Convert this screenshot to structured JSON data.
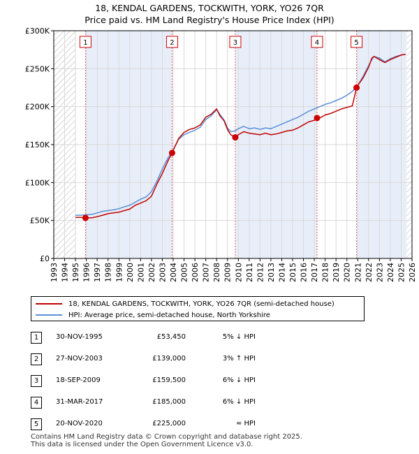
{
  "header": {
    "title_line1": "18, KENDAL GARDENS, TOCKWITH, YORK, YO26 7QR",
    "title_line2": "Price paid vs. HM Land Registry's House Price Index (HPI)"
  },
  "chart_data": {
    "type": "line",
    "title": "Price paid vs. HM Land Registry's House Price Index (HPI)",
    "xlabel": "",
    "ylabel": "",
    "xlim": [
      1993,
      2026
    ],
    "ylim": [
      0,
      300000
    ],
    "y_ticks": [
      0,
      50000,
      100000,
      150000,
      200000,
      250000,
      300000
    ],
    "y_tick_labels": [
      "£0",
      "£50K",
      "£100K",
      "£150K",
      "£200K",
      "£250K",
      "£300K"
    ],
    "x_ticks": [
      1993,
      1994,
      1995,
      1996,
      1997,
      1998,
      1999,
      2000,
      2001,
      2002,
      2003,
      2004,
      2005,
      2006,
      2007,
      2008,
      2009,
      2010,
      2011,
      2012,
      2013,
      2014,
      2015,
      2016,
      2017,
      2018,
      2019,
      2020,
      2021,
      2022,
      2023,
      2024,
      2025,
      2026
    ],
    "hatched_ranges": [
      [
        1993,
        1995.0
      ],
      [
        2025.5,
        2026
      ]
    ],
    "series": [
      {
        "name": "18, KENDAL GARDENS, TOCKWITH, YORK, YO26 7QR (semi-detached house)",
        "color": "#c00000",
        "x": [
          1995.0,
          1995.5,
          1995.92,
          1996.5,
          1997.0,
          1997.5,
          1998.0,
          1998.5,
          1999.0,
          1999.5,
          2000.0,
          2000.5,
          2001.0,
          2001.5,
          2002.0,
          2002.5,
          2003.0,
          2003.5,
          2003.9,
          2004.5,
          2005.0,
          2005.5,
          2006.0,
          2006.5,
          2007.0,
          2007.5,
          2008.0,
          2008.3,
          2008.7,
          2009.0,
          2009.3,
          2009.72,
          2010.0,
          2010.5,
          2011.0,
          2011.5,
          2012.0,
          2012.5,
          2013.0,
          2013.5,
          2014.0,
          2014.5,
          2015.0,
          2015.5,
          2016.0,
          2016.5,
          2017.0,
          2017.25,
          2017.5,
          2018.0,
          2018.5,
          2019.0,
          2019.5,
          2020.0,
          2020.5,
          2020.89,
          2021.0,
          2021.5,
          2022.0,
          2022.3,
          2022.5,
          2023.0,
          2023.5,
          2024.0,
          2024.5,
          2025.0,
          2025.4
        ],
        "y": [
          54000,
          54000,
          53450,
          53500,
          55000,
          57000,
          59000,
          60000,
          61000,
          63000,
          65000,
          70000,
          73000,
          76000,
          82000,
          98000,
          112000,
          128000,
          139000,
          158000,
          166000,
          170000,
          172000,
          176000,
          186000,
          190000,
          197000,
          188000,
          181000,
          170000,
          163000,
          159500,
          163000,
          167000,
          165000,
          164000,
          163000,
          165000,
          163000,
          164000,
          166000,
          168000,
          169000,
          172000,
          176000,
          180000,
          182000,
          185000,
          185000,
          189000,
          191000,
          194000,
          197000,
          199000,
          201000,
          225000,
          228000,
          238000,
          252000,
          264000,
          266000,
          262000,
          258000,
          262000,
          265000,
          268000,
          269000
        ]
      },
      {
        "name": "HPI: Average price, semi-detached house, North Yorkshire",
        "color": "#5b8fd6",
        "x": [
          1995.0,
          1995.5,
          1996.0,
          1996.5,
          1997.0,
          1997.5,
          1998.0,
          1998.5,
          1999.0,
          1999.5,
          2000.0,
          2000.5,
          2001.0,
          2001.5,
          2002.0,
          2002.5,
          2003.0,
          2003.5,
          2004.0,
          2004.5,
          2005.0,
          2005.5,
          2006.0,
          2006.5,
          2007.0,
          2007.5,
          2008.0,
          2008.3,
          2008.7,
          2009.0,
          2009.3,
          2009.7,
          2010.0,
          2010.5,
          2011.0,
          2011.5,
          2012.0,
          2012.5,
          2013.0,
          2013.5,
          2014.0,
          2014.5,
          2015.0,
          2015.5,
          2016.0,
          2016.5,
          2017.0,
          2017.5,
          2018.0,
          2018.5,
          2019.0,
          2019.5,
          2020.0,
          2020.5,
          2021.0,
          2021.5,
          2022.0,
          2022.3,
          2022.5,
          2023.0,
          2023.5,
          2024.0,
          2024.5,
          2025.0,
          2025.4
        ],
        "y": [
          57000,
          57000,
          57500,
          58000,
          60000,
          62000,
          63000,
          64000,
          65500,
          68000,
          70000,
          74000,
          78000,
          81000,
          88000,
          102000,
          118000,
          132000,
          143000,
          157000,
          163000,
          166000,
          169000,
          173000,
          183000,
          188000,
          196000,
          190000,
          182000,
          172000,
          167000,
          168000,
          171000,
          174000,
          171000,
          172000,
          170000,
          172000,
          171000,
          174000,
          177000,
          180000,
          183000,
          186000,
          190000,
          194000,
          197000,
          200000,
          203000,
          205000,
          208000,
          211000,
          215000,
          220000,
          228000,
          240000,
          254000,
          262000,
          266000,
          264000,
          259000,
          263000,
          266000,
          268000,
          269000
        ]
      }
    ],
    "sales": [
      {
        "num": "1",
        "x": 1995.92,
        "y": 53450
      },
      {
        "num": "2",
        "x": 2003.9,
        "y": 139000
      },
      {
        "num": "3",
        "x": 2009.72,
        "y": 159500
      },
      {
        "num": "4",
        "x": 2017.25,
        "y": 185000
      },
      {
        "num": "5",
        "x": 2020.89,
        "y": 225000
      }
    ]
  },
  "legend": {
    "entries": [
      {
        "label": "18, KENDAL GARDENS, TOCKWITH, YORK, YO26 7QR (semi-detached house)",
        "color": "#c00000"
      },
      {
        "label": "HPI: Average price, semi-detached house, North Yorkshire",
        "color": "#5b8fd6"
      }
    ]
  },
  "transactions": [
    {
      "num": "1",
      "date": "30-NOV-1995",
      "price": "£53,450",
      "hpi": "5% ↓ HPI"
    },
    {
      "num": "2",
      "date": "27-NOV-2003",
      "price": "£139,000",
      "hpi": "3% ↑ HPI"
    },
    {
      "num": "3",
      "date": "18-SEP-2009",
      "price": "£159,500",
      "hpi": "6% ↓ HPI"
    },
    {
      "num": "4",
      "date": "31-MAR-2017",
      "price": "£185,000",
      "hpi": "6% ↓ HPI"
    },
    {
      "num": "5",
      "date": "20-NOV-2020",
      "price": "£225,000",
      "hpi": "≈ HPI"
    }
  ],
  "footer": {
    "line1": "Contains HM Land Registry data © Crown copyright and database right 2025.",
    "line2": "This data is licensed under the Open Government Licence v3.0."
  }
}
